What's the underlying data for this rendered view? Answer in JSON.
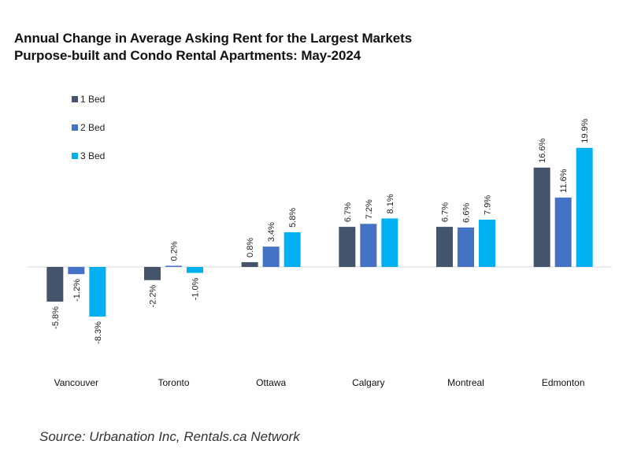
{
  "chart_data": {
    "type": "bar",
    "title": "Annual Change in Average Asking Rent for the Largest Markets",
    "subtitle": "Purpose-built and Condo Rental Apartments: May-2024",
    "categories": [
      "Vancouver",
      "Toronto",
      "Ottawa",
      "Calgary",
      "Montreal",
      "Edmonton"
    ],
    "series": [
      {
        "name": "1 Bed",
        "color": "#44546a",
        "values": [
          -5.8,
          -2.2,
          0.8,
          6.7,
          6.7,
          16.6
        ]
      },
      {
        "name": "2 Bed",
        "color": "#4472c4",
        "values": [
          -1.2,
          0.2,
          3.4,
          7.2,
          6.6,
          11.6
        ]
      },
      {
        "name": "3 Bed",
        "color": "#00b0f0",
        "values": [
          -8.3,
          -1.0,
          5.8,
          8.1,
          7.9,
          19.9
        ]
      }
    ],
    "value_format": "percent_one_decimal",
    "legend_position": "top-left",
    "grid": false
  },
  "source": "Source: Urbanation Inc, Rentals.ca Network"
}
